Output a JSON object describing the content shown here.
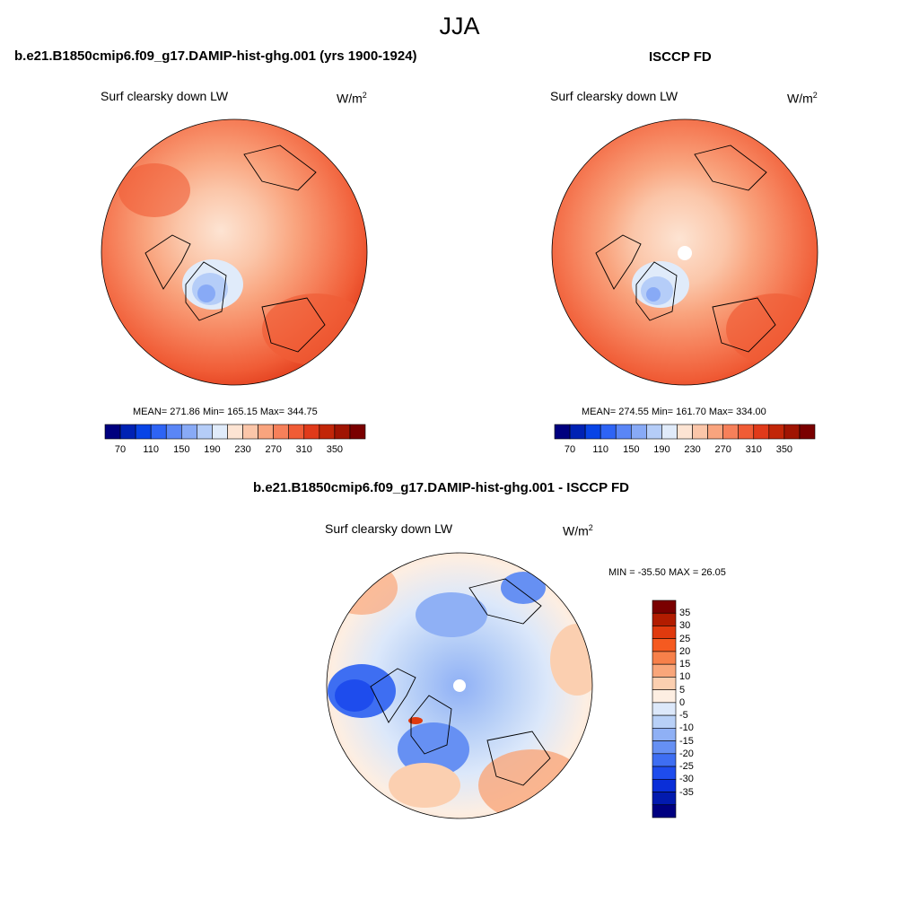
{
  "figure_title": "JJA",
  "panel_a": {
    "title": "b.e21.B1850cmip6.f09_g17.DAMIP-hist-ghg.001 (yrs 1900-1924)",
    "variable": "Surf clearsky down LW",
    "units_base": "W/m",
    "units_sup": "2",
    "stats": "MEAN= 271.86  Min= 165.15  Max= 344.75"
  },
  "panel_b": {
    "title": "ISCCP FD",
    "variable": "Surf clearsky down LW",
    "units_base": "W/m",
    "units_sup": "2",
    "stats": "MEAN= 274.55  Min= 161.70  Max= 334.00"
  },
  "panel_c": {
    "title": "b.e21.B1850cmip6.f09_g17.DAMIP-hist-ghg.001 - ISCCP FD",
    "variable": "Surf clearsky down LW",
    "units_base": "W/m",
    "units_sup": "2",
    "stats": "MIN = -35.50 MAX =  26.05"
  },
  "abs_colorbar": {
    "colors": [
      "#00007f",
      "#0022b4",
      "#0844e6",
      "#2e64f5",
      "#5a86f6",
      "#88aaf6",
      "#b5cdf8",
      "#e0ebfa",
      "#fde4d3",
      "#fbc6a9",
      "#f9a47e",
      "#f6805a",
      "#f05c36",
      "#e03a1a",
      "#c22608",
      "#a01402",
      "#7a0000"
    ],
    "labels": [
      "70",
      "110",
      "150",
      "190",
      "230",
      "270",
      "310",
      "350"
    ]
  },
  "diff_colorbar": {
    "colors": [
      "#7a0000",
      "#b21c00",
      "#e03a0e",
      "#f55a20",
      "#f7804a",
      "#f9a67a",
      "#fbcfb0",
      "#fdeee2",
      "#dce8fa",
      "#b8d0f7",
      "#8fb0f5",
      "#6690f3",
      "#3e6ef2",
      "#1e4ced",
      "#0a2ed8",
      "#021aae",
      "#000080"
    ],
    "labels": [
      "35",
      "30",
      "25",
      "20",
      "15",
      "10",
      "5",
      "0",
      "-5",
      "-10",
      "-15",
      "-20",
      "-25",
      "-30",
      "-35"
    ]
  }
}
